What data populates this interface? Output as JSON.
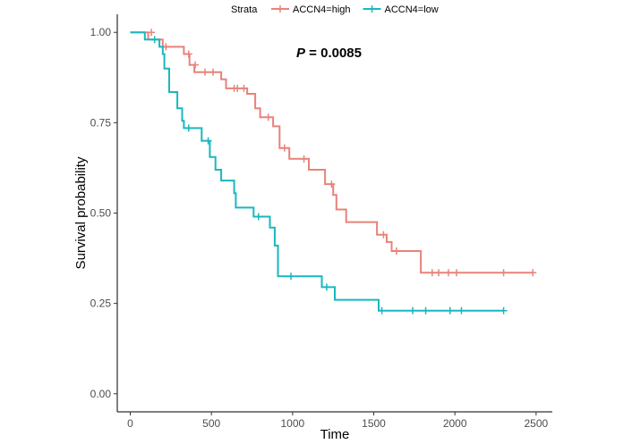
{
  "chart_data": {
    "type": "line",
    "xlabel": "Time",
    "ylabel": "Survival probability",
    "xlim": [
      -80,
      2600
    ],
    "ylim": [
      -0.05,
      1.05
    ],
    "xticks": [
      0,
      500,
      1000,
      1500,
      2000,
      2500
    ],
    "yticks": [
      0.0,
      0.25,
      0.5,
      0.75,
      1.0
    ],
    "xtick_labels": [
      "0",
      "500",
      "1000",
      "1500",
      "2000",
      "2500"
    ],
    "ytick_labels": [
      "0.00",
      "0.25",
      "0.50",
      "0.75",
      "1.00"
    ],
    "grid": false,
    "legend": {
      "title": "Strata",
      "position": "top"
    },
    "annotation": {
      "prefix": "P",
      "text": " = 0.0085"
    },
    "series": [
      {
        "name": "ACCN4=high",
        "color": "#e7837a",
        "points": [
          [
            0,
            1.0
          ],
          [
            110,
            1.0
          ],
          [
            110,
            0.98
          ],
          [
            200,
            0.98
          ],
          [
            200,
            0.96
          ],
          [
            330,
            0.96
          ],
          [
            330,
            0.94
          ],
          [
            365,
            0.94
          ],
          [
            365,
            0.91
          ],
          [
            395,
            0.91
          ],
          [
            395,
            0.89
          ],
          [
            560,
            0.89
          ],
          [
            560,
            0.87
          ],
          [
            590,
            0.87
          ],
          [
            590,
            0.845
          ],
          [
            720,
            0.845
          ],
          [
            720,
            0.83
          ],
          [
            770,
            0.83
          ],
          [
            770,
            0.79
          ],
          [
            800,
            0.79
          ],
          [
            800,
            0.765
          ],
          [
            880,
            0.765
          ],
          [
            880,
            0.74
          ],
          [
            920,
            0.74
          ],
          [
            920,
            0.68
          ],
          [
            980,
            0.68
          ],
          [
            980,
            0.65
          ],
          [
            1100,
            0.65
          ],
          [
            1100,
            0.62
          ],
          [
            1200,
            0.62
          ],
          [
            1200,
            0.58
          ],
          [
            1250,
            0.58
          ],
          [
            1250,
            0.55
          ],
          [
            1270,
            0.55
          ],
          [
            1270,
            0.51
          ],
          [
            1330,
            0.51
          ],
          [
            1330,
            0.475
          ],
          [
            1520,
            0.475
          ],
          [
            1520,
            0.44
          ],
          [
            1580,
            0.44
          ],
          [
            1580,
            0.42
          ],
          [
            1610,
            0.42
          ],
          [
            1610,
            0.395
          ],
          [
            1790,
            0.395
          ],
          [
            1790,
            0.335
          ],
          [
            2480,
            0.335
          ]
        ],
        "censor_x": [
          130,
          220,
          360,
          400,
          460,
          510,
          640,
          660,
          700,
          850,
          950,
          1070,
          1240,
          1560,
          1640,
          1860,
          1900,
          1960,
          2010,
          2300,
          2480
        ],
        "censor_y": [
          1.0,
          0.96,
          0.94,
          0.91,
          0.89,
          0.89,
          0.845,
          0.845,
          0.845,
          0.765,
          0.68,
          0.65,
          0.58,
          0.44,
          0.395,
          0.335,
          0.335,
          0.335,
          0.335,
          0.335,
          0.335
        ]
      },
      {
        "name": "ACCN4=low",
        "color": "#1ab7bf",
        "points": [
          [
            0,
            1.0
          ],
          [
            90,
            1.0
          ],
          [
            90,
            0.98
          ],
          [
            180,
            0.98
          ],
          [
            180,
            0.96
          ],
          [
            200,
            0.96
          ],
          [
            200,
            0.94
          ],
          [
            210,
            0.94
          ],
          [
            210,
            0.9
          ],
          [
            240,
            0.9
          ],
          [
            240,
            0.835
          ],
          [
            290,
            0.835
          ],
          [
            290,
            0.79
          ],
          [
            320,
            0.79
          ],
          [
            320,
            0.755
          ],
          [
            330,
            0.755
          ],
          [
            330,
            0.735
          ],
          [
            440,
            0.735
          ],
          [
            440,
            0.7
          ],
          [
            490,
            0.7
          ],
          [
            490,
            0.655
          ],
          [
            525,
            0.655
          ],
          [
            525,
            0.62
          ],
          [
            560,
            0.62
          ],
          [
            560,
            0.59
          ],
          [
            640,
            0.59
          ],
          [
            640,
            0.555
          ],
          [
            650,
            0.555
          ],
          [
            650,
            0.515
          ],
          [
            760,
            0.515
          ],
          [
            760,
            0.49
          ],
          [
            860,
            0.49
          ],
          [
            860,
            0.46
          ],
          [
            890,
            0.46
          ],
          [
            890,
            0.41
          ],
          [
            910,
            0.41
          ],
          [
            910,
            0.325
          ],
          [
            1180,
            0.325
          ],
          [
            1180,
            0.295
          ],
          [
            1260,
            0.295
          ],
          [
            1260,
            0.26
          ],
          [
            1530,
            0.26
          ],
          [
            1530,
            0.23
          ],
          [
            2300,
            0.23
          ]
        ],
        "censor_x": [
          150,
          360,
          480,
          790,
          990,
          1210,
          1550,
          1740,
          1820,
          1970,
          2040,
          2300
        ],
        "censor_y": [
          0.98,
          0.735,
          0.7,
          0.49,
          0.325,
          0.295,
          0.23,
          0.23,
          0.23,
          0.23,
          0.23,
          0.23
        ]
      }
    ]
  }
}
